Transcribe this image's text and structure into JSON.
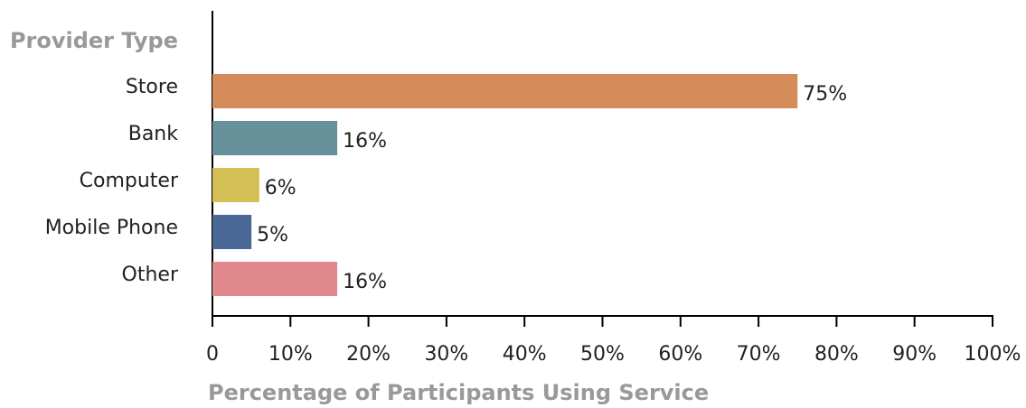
{
  "chart_data": {
    "type": "bar",
    "orientation": "horizontal",
    "y_axis_title": "Provider Type",
    "x_axis_title": "Percentage of Participants Using Service",
    "categories": [
      "Store",
      "Bank",
      "Computer",
      "Mobile Phone",
      "Other"
    ],
    "values": [
      75,
      16,
      6,
      5,
      16
    ],
    "value_labels": [
      "75%",
      "16%",
      "6%",
      "5%",
      "16%"
    ],
    "colors": [
      "#d68b5a",
      "#66909a",
      "#d4bf55",
      "#4a6896",
      "#e0888b"
    ],
    "xlim": [
      0,
      100
    ],
    "xticks": [
      0,
      {
        "value": 10,
        "label": "10%"
      },
      {
        "value": 20,
        "label": "20%"
      },
      {
        "value": 30,
        "label": "30%"
      },
      {
        "value": 40,
        "label": "40%"
      },
      {
        "value": 50,
        "label": "50%"
      },
      {
        "value": 60,
        "label": "60%"
      },
      {
        "value": 70,
        "label": "70%"
      },
      {
        "value": 80,
        "label": "80%"
      },
      {
        "value": 90,
        "label": "90%"
      },
      {
        "value": 100,
        "label": "100%"
      }
    ],
    "grid": false
  }
}
